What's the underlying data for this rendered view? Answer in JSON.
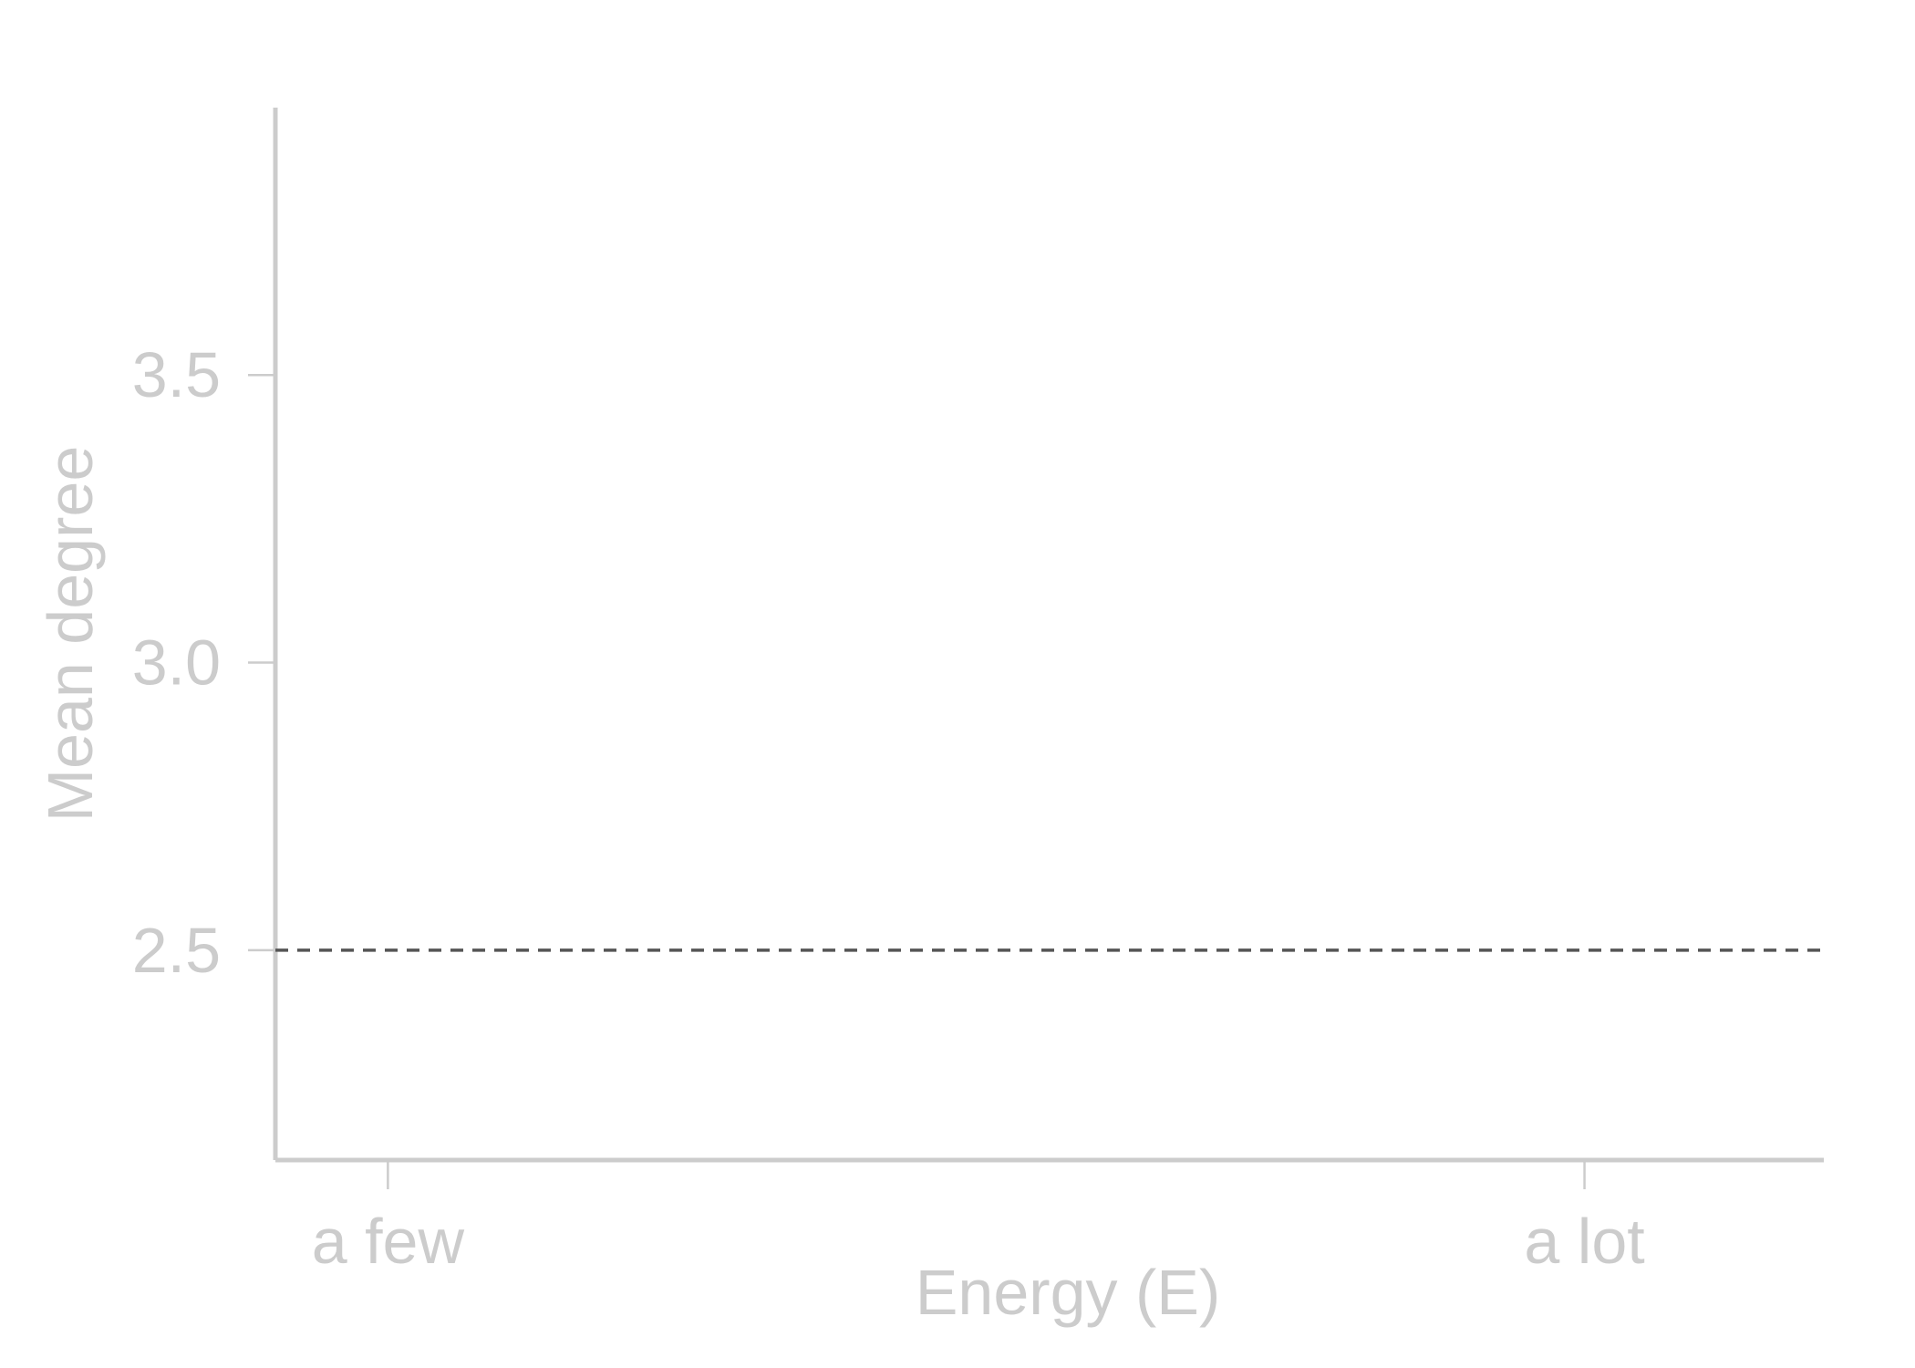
{
  "chart_data": {
    "type": "line",
    "title": "",
    "xlabel": "Energy (E)",
    "ylabel": "Mean degree",
    "x_categories": [
      "a few",
      "a lot"
    ],
    "yticks": [
      2.5,
      3.0,
      3.5
    ],
    "ytick_labels": [
      "2.5",
      "3.0",
      "3.5"
    ],
    "ylim": [
      2.135,
      3.965
    ],
    "xlim": [
      -0.094,
      1.2
    ],
    "grid": false,
    "series": [],
    "reference_lines": [
      {
        "orientation": "horizontal",
        "y": 2.5,
        "style": "dashed",
        "color": "#555555"
      }
    ],
    "colors": {
      "axis": "#cccccc",
      "reference_line": "#555555"
    }
  }
}
